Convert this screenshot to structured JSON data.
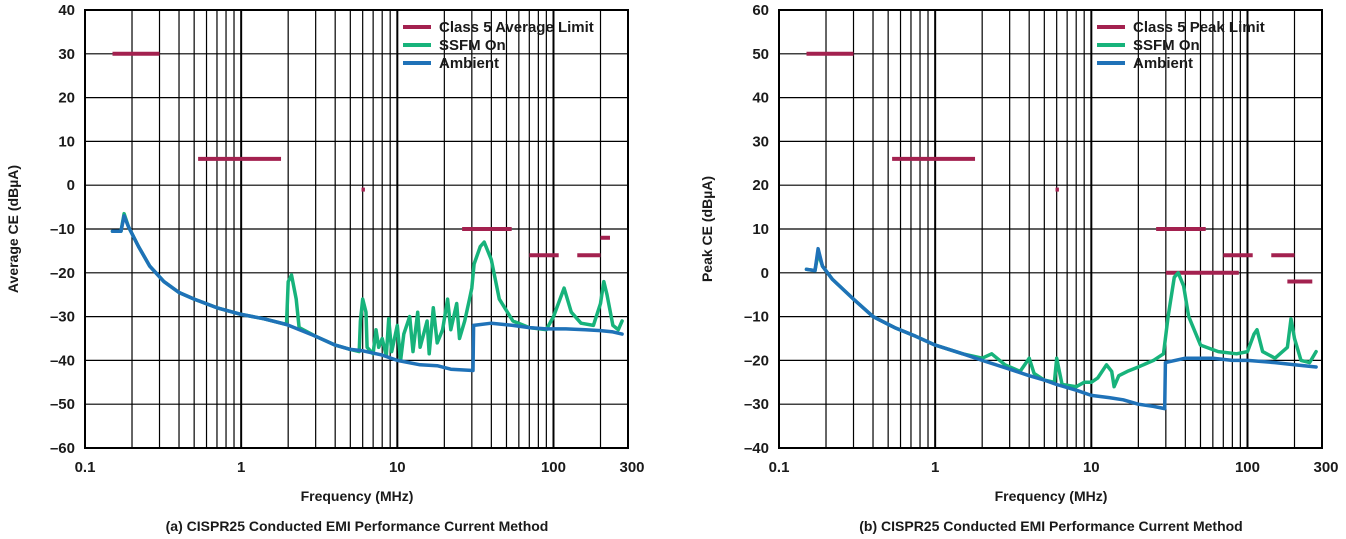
{
  "colors": {
    "limit": "#a3214f",
    "ssfm": "#17b37b",
    "ambient": "#1f72b8",
    "grid": "#000000",
    "text": "#1a1a1a"
  },
  "chart_data": [
    {
      "type": "line",
      "title": "(a) CISPR25 Conducted EMI Performance Current Method",
      "xlabel": "Frequency (MHz)",
      "ylabel": "Average CE (dBµA)",
      "xscale": "log",
      "xlim": [
        0.1,
        300
      ],
      "ylim": [
        -60,
        40
      ],
      "xticks": [
        0.1,
        1,
        10,
        100,
        300
      ],
      "xtick_labels": [
        "0.1",
        "1",
        "10",
        "100",
        "300"
      ],
      "yticks": [
        -60,
        -50,
        -40,
        -30,
        -20,
        -10,
        0,
        10,
        20,
        30,
        40
      ],
      "grid": true,
      "legend": "top-right",
      "series": [
        {
          "name": "Class 5 Average Limit",
          "color_key": "limit",
          "style": "segments",
          "segments": [
            {
              "x": [
                0.15,
                0.3
              ],
              "y": 30
            },
            {
              "x": [
                0.53,
                1.8
              ],
              "y": 6
            },
            {
              "x": [
                5.9,
                6.2
              ],
              "y": -1
            },
            {
              "x": [
                26,
                54
              ],
              "y": -10
            },
            {
              "x": [
                70,
                108
              ],
              "y": -16
            },
            {
              "x": [
                142,
                200
              ],
              "y": -16
            },
            {
              "x": [
                200,
                230
              ],
              "y": -12
            }
          ]
        },
        {
          "name": "SSFM On",
          "color_key": "ssfm",
          "points": [
            [
              0.15,
              -10.5
            ],
            [
              0.17,
              -10.5
            ],
            [
              0.178,
              -6.5
            ],
            [
              0.19,
              -9.5
            ],
            [
              0.22,
              -14
            ],
            [
              0.26,
              -18.5
            ],
            [
              0.32,
              -22
            ],
            [
              0.4,
              -24.5
            ],
            [
              0.5,
              -26
            ],
            [
              0.7,
              -28
            ],
            [
              1,
              -29.5
            ],
            [
              1.4,
              -30.5
            ],
            [
              1.95,
              -31.8
            ],
            [
              2.0,
              -22
            ],
            [
              2.1,
              -20.5
            ],
            [
              2.25,
              -26
            ],
            [
              2.35,
              -32.5
            ],
            [
              3,
              -34.5
            ],
            [
              4,
              -36.5
            ],
            [
              5,
              -37.5
            ],
            [
              5.7,
              -38
            ],
            [
              5.8,
              -31
            ],
            [
              6.0,
              -26
            ],
            [
              6.3,
              -29
            ],
            [
              6.4,
              -37
            ],
            [
              7,
              -38.5
            ],
            [
              7.3,
              -33
            ],
            [
              7.6,
              -37
            ],
            [
              8,
              -35
            ],
            [
              8.5,
              -39
            ],
            [
              8.8,
              -30.5
            ],
            [
              9.2,
              -38
            ],
            [
              10,
              -32
            ],
            [
              10.5,
              -40
            ],
            [
              11,
              -34
            ],
            [
              12,
              -30
            ],
            [
              12.6,
              -38
            ],
            [
              13.5,
              -29
            ],
            [
              14,
              -37
            ],
            [
              15.5,
              -31
            ],
            [
              16,
              -38.5
            ],
            [
              17,
              -28
            ],
            [
              18,
              -36
            ],
            [
              19.5,
              -33
            ],
            [
              21,
              -26
            ],
            [
              22,
              -33
            ],
            [
              24,
              -27
            ],
            [
              25,
              -35
            ],
            [
              27,
              -31
            ],
            [
              29,
              -26
            ],
            [
              30,
              -23.5
            ],
            [
              31,
              -18
            ],
            [
              34,
              -14
            ],
            [
              36,
              -13
            ],
            [
              40,
              -17
            ],
            [
              45,
              -26
            ],
            [
              55,
              -31
            ],
            [
              70,
              -32.5
            ],
            [
              90,
              -33
            ],
            [
              100,
              -30
            ],
            [
              110,
              -26
            ],
            [
              117,
              -23.5
            ],
            [
              130,
              -29
            ],
            [
              150,
              -31.5
            ],
            [
              180,
              -32
            ],
            [
              200,
              -27
            ],
            [
              210,
              -22
            ],
            [
              220,
              -25
            ],
            [
              240,
              -32
            ],
            [
              260,
              -33
            ],
            [
              275,
              -31
            ]
          ]
        },
        {
          "name": "Ambient",
          "color_key": "ambient",
          "points": [
            [
              0.15,
              -10.5
            ],
            [
              0.17,
              -10.5
            ],
            [
              0.178,
              -7
            ],
            [
              0.19,
              -9.5
            ],
            [
              0.22,
              -14
            ],
            [
              0.26,
              -18.5
            ],
            [
              0.32,
              -22
            ],
            [
              0.4,
              -24.5
            ],
            [
              0.5,
              -26
            ],
            [
              0.7,
              -28
            ],
            [
              1,
              -29.5
            ],
            [
              1.4,
              -30.5
            ],
            [
              1.95,
              -31.8
            ],
            [
              3,
              -34.5
            ],
            [
              4,
              -36.5
            ],
            [
              5,
              -37.5
            ],
            [
              6,
              -37.8
            ],
            [
              8,
              -38.8
            ],
            [
              10,
              -40
            ],
            [
              14,
              -41
            ],
            [
              18,
              -41.2
            ],
            [
              22,
              -42
            ],
            [
              30.5,
              -42.3
            ],
            [
              30.8,
              -32
            ],
            [
              40,
              -31.5
            ],
            [
              55,
              -32
            ],
            [
              70,
              -32.5
            ],
            [
              90,
              -32.8
            ],
            [
              120,
              -32.8
            ],
            [
              160,
              -33
            ],
            [
              200,
              -33.2
            ],
            [
              240,
              -33.5
            ],
            [
              275,
              -34
            ]
          ]
        }
      ]
    },
    {
      "type": "line",
      "title": "(b) CISPR25 Conducted EMI Performance Current Method",
      "xlabel": "Frequency (MHz)",
      "ylabel": "Peak CE (dBµA)",
      "xscale": "log",
      "xlim": [
        0.1,
        300
      ],
      "ylim": [
        -40,
        60
      ],
      "xticks": [
        0.1,
        1,
        10,
        100,
        300
      ],
      "xtick_labels": [
        "0.1",
        "1",
        "10",
        "100",
        "300"
      ],
      "yticks": [
        -40,
        -30,
        -20,
        -10,
        0,
        10,
        20,
        30,
        40,
        50,
        60
      ],
      "grid": true,
      "legend": "top-right",
      "series": [
        {
          "name": "Class 5 Peak Limit",
          "color_key": "limit",
          "style": "segments",
          "segments": [
            {
              "x": [
                0.15,
                0.3
              ],
              "y": 50
            },
            {
              "x": [
                0.53,
                1.8
              ],
              "y": 26
            },
            {
              "x": [
                5.9,
                6.2
              ],
              "y": 19
            },
            {
              "x": [
                26,
                54
              ],
              "y": 10
            },
            {
              "x": [
                30,
                88
              ],
              "y": 0
            },
            {
              "x": [
                70,
                108
              ],
              "y": 4
            },
            {
              "x": [
                142,
                200
              ],
              "y": 4
            },
            {
              "x": [
                180,
                260
              ],
              "y": -2
            }
          ]
        },
        {
          "name": "SSFM On",
          "color_key": "ssfm",
          "points": [
            [
              0.15,
              0.8
            ],
            [
              0.17,
              0.5
            ],
            [
              0.178,
              4.5
            ],
            [
              0.19,
              1.5
            ],
            [
              0.22,
              -1.5
            ],
            [
              0.3,
              -6
            ],
            [
              0.4,
              -10
            ],
            [
              0.55,
              -12.5
            ],
            [
              0.75,
              -14.5
            ],
            [
              1,
              -16.5
            ],
            [
              1.5,
              -18.5
            ],
            [
              2,
              -19.5
            ],
            [
              2.3,
              -18.5
            ],
            [
              2.8,
              -21
            ],
            [
              3.5,
              -22.5
            ],
            [
              4,
              -19.5
            ],
            [
              4.3,
              -23
            ],
            [
              5,
              -24.5
            ],
            [
              5.8,
              -25
            ],
            [
              6.0,
              -19.5
            ],
            [
              6.2,
              -22
            ],
            [
              6.5,
              -25.5
            ],
            [
              8,
              -26
            ],
            [
              9,
              -25
            ],
            [
              10,
              -25
            ],
            [
              11,
              -24
            ],
            [
              12.5,
              -21
            ],
            [
              13.5,
              -22.5
            ],
            [
              14,
              -26
            ],
            [
              15,
              -23.5
            ],
            [
              17,
              -22.5
            ],
            [
              20,
              -21.5
            ],
            [
              25,
              -20
            ],
            [
              29,
              -18.5
            ],
            [
              31,
              -10
            ],
            [
              34,
              -1
            ],
            [
              36,
              0
            ],
            [
              39,
              -3
            ],
            [
              42,
              -10
            ],
            [
              50,
              -16.5
            ],
            [
              65,
              -18
            ],
            [
              85,
              -18.5
            ],
            [
              100,
              -18
            ],
            [
              110,
              -14
            ],
            [
              115,
              -13
            ],
            [
              125,
              -18
            ],
            [
              150,
              -19.5
            ],
            [
              180,
              -17
            ],
            [
              190,
              -10.5
            ],
            [
              200,
              -15
            ],
            [
              220,
              -20
            ],
            [
              250,
              -20.5
            ],
            [
              275,
              -18
            ]
          ]
        },
        {
          "name": "Ambient",
          "color_key": "ambient",
          "points": [
            [
              0.15,
              0.8
            ],
            [
              0.17,
              0.5
            ],
            [
              0.178,
              5.5
            ],
            [
              0.19,
              1.5
            ],
            [
              0.22,
              -1.5
            ],
            [
              0.3,
              -6
            ],
            [
              0.4,
              -10
            ],
            [
              0.55,
              -12.5
            ],
            [
              0.75,
              -14.5
            ],
            [
              1,
              -16.5
            ],
            [
              1.5,
              -18.5
            ],
            [
              2,
              -20
            ],
            [
              3,
              -22
            ],
            [
              4,
              -23.5
            ],
            [
              5,
              -24.5
            ],
            [
              6,
              -25.5
            ],
            [
              8,
              -26.8
            ],
            [
              10,
              -28
            ],
            [
              13,
              -28.5
            ],
            [
              16,
              -29
            ],
            [
              20,
              -30
            ],
            [
              25,
              -30.5
            ],
            [
              29.5,
              -31
            ],
            [
              29.8,
              -20.5
            ],
            [
              40,
              -19.5
            ],
            [
              60,
              -19.5
            ],
            [
              80,
              -20
            ],
            [
              100,
              -20
            ],
            [
              150,
              -20.5
            ],
            [
              200,
              -21
            ],
            [
              275,
              -21.5
            ]
          ]
        }
      ]
    }
  ]
}
